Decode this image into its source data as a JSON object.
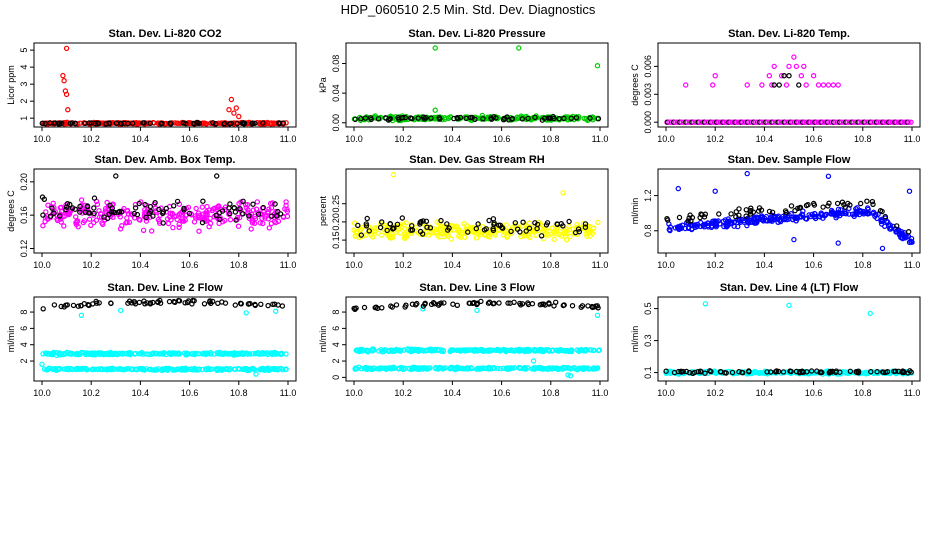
{
  "figure_title": "HDP_060510  2.5 Min. Std. Dev. Diagnostics",
  "colors": {
    "red": "#ff0000",
    "green": "#00cc00",
    "magenta": "#ff00ff",
    "yellow": "#ffff00",
    "blue": "#0000ff",
    "cyan": "#00ffff",
    "black": "#000000"
  },
  "chart_data": [
    {
      "type": "scatter",
      "title": "Stan. Dev. Li-820 CO2",
      "ylabel": "Licor ppm",
      "xlabel": "",
      "xlim": [
        10.0,
        11.0
      ],
      "ylim": [
        0.6,
        5.3
      ],
      "xticks": [
        "10.0",
        "10.2",
        "10.4",
        "10.6",
        "10.8",
        "11.0"
      ],
      "yticks": [
        {
          "v": 1,
          "label": "1"
        },
        {
          "v": 2,
          "label": "2"
        },
        {
          "v": 3,
          "label": "3"
        },
        {
          "v": 4,
          "label": "4"
        },
        {
          "v": 5,
          "label": "5"
        }
      ],
      "series": [
        {
          "name": "primary",
          "color": "#ff0000",
          "gen": {
            "seed": 11,
            "n": 230,
            "base": 0.7,
            "amp": 0.07
          },
          "points": [
            [
              10.1,
              5.1
            ],
            [
              10.085,
              3.5
            ],
            [
              10.09,
              3.2
            ],
            [
              10.095,
              2.6
            ],
            [
              10.1,
              2.4
            ],
            [
              10.105,
              1.5
            ],
            [
              10.77,
              2.1
            ],
            [
              10.76,
              1.5
            ],
            [
              10.78,
              1.3
            ],
            [
              10.79,
              1.6
            ],
            [
              10.8,
              1.1
            ]
          ]
        },
        {
          "name": "secondary",
          "color": "#000000",
          "gen": {
            "seed": 12,
            "n": 70,
            "base": 0.7,
            "amp": 0.06
          },
          "points": []
        }
      ]
    },
    {
      "type": "scatter",
      "title": "Stan. Dev. Li-820 Pressure",
      "ylabel": "kPa",
      "xlabel": "",
      "xlim": [
        10.0,
        11.0
      ],
      "ylim": [
        -0.003,
        0.105
      ],
      "xticks": [
        "10.0",
        "10.2",
        "10.4",
        "10.6",
        "10.8",
        "11.0"
      ],
      "yticks": [
        {
          "v": 0,
          "label": "0.00"
        },
        {
          "v": 0.04,
          "label": "0.04"
        },
        {
          "v": 0.08,
          "label": "0.08"
        }
      ],
      "series": [
        {
          "name": "primary",
          "color": "#00cc00",
          "gen": {
            "seed": 21,
            "n": 230,
            "base": 0.006,
            "amp": 0.004
          },
          "points": [
            [
              10.33,
              0.101
            ],
            [
              10.67,
              0.101
            ],
            [
              10.99,
              0.077
            ],
            [
              10.33,
              0.017
            ]
          ]
        },
        {
          "name": "secondary",
          "color": "#000000",
          "gen": {
            "seed": 22,
            "n": 60,
            "base": 0.006,
            "amp": 0.003
          },
          "points": []
        }
      ]
    },
    {
      "type": "scatter",
      "title": "Stan. Dev. Li-820 Temp.",
      "ylabel": "degrees C",
      "xlabel": "",
      "xlim": [
        10.0,
        11.0
      ],
      "ylim": [
        -0.0003,
        0.0083
      ],
      "xticks": [
        "10.0",
        "10.2",
        "10.4",
        "10.6",
        "10.8",
        "11.0"
      ],
      "yticks": [
        {
          "v": 0,
          "label": "0.000"
        },
        {
          "v": 0.003,
          "label": "0.003"
        },
        {
          "v": 0.006,
          "label": "0.006"
        }
      ],
      "series": [
        {
          "name": "primary",
          "color": "#ff00ff",
          "gen": {
            "seed": 31,
            "n": 0,
            "base": 0,
            "amp": 0
          },
          "points": [
            [
              10.08,
              0.004
            ],
            [
              10.19,
              0.004
            ],
            [
              10.2,
              0.005
            ],
            [
              10.33,
              0.004
            ],
            [
              10.39,
              0.004
            ],
            [
              10.42,
              0.005
            ],
            [
              10.43,
              0.004
            ],
            [
              10.44,
              0.006
            ],
            [
              10.47,
              0.005
            ],
            [
              10.49,
              0.004
            ],
            [
              10.5,
              0.006
            ],
            [
              10.52,
              0.007
            ],
            [
              10.53,
              0.006
            ],
            [
              10.55,
              0.005
            ],
            [
              10.56,
              0.006
            ],
            [
              10.57,
              0.004
            ],
            [
              10.6,
              0.005
            ],
            [
              10.62,
              0.004
            ],
            [
              10.64,
              0.004
            ],
            [
              10.66,
              0.004
            ],
            [
              10.68,
              0.004
            ],
            [
              10.7,
              0.004
            ]
          ]
        },
        {
          "name": "secondary",
          "color": "#000000",
          "gen": {
            "seed": 32,
            "n": 0,
            "base": 0,
            "amp": 0
          },
          "points": [
            [
              10.44,
              0.004
            ],
            [
              10.46,
              0.004
            ],
            [
              10.48,
              0.005
            ],
            [
              10.5,
              0.005
            ],
            [
              10.54,
              0.004
            ]
          ]
        }
      ],
      "baseline": {
        "value": 0,
        "count": 120,
        "color": "#ff00ff"
      }
    },
    {
      "type": "scatter",
      "title": "Stan. Dev. Amb. Box Temp.",
      "ylabel": "degrees C",
      "xlabel": "",
      "xlim": [
        10.0,
        11.0
      ],
      "ylim": [
        0.117,
        0.213
      ],
      "xticks": [
        "10.0",
        "10.2",
        "10.4",
        "10.6",
        "10.8",
        "11.0"
      ],
      "yticks": [
        {
          "v": 0.12,
          "label": "0.12"
        },
        {
          "v": 0.16,
          "label": "0.16"
        },
        {
          "v": 0.2,
          "label": "0.20"
        }
      ],
      "series": [
        {
          "name": "primary",
          "color": "#ff00ff",
          "gen": {
            "seed": 41,
            "n": 280,
            "base": 0.16,
            "amp": 0.022
          },
          "points": []
        },
        {
          "name": "secondary",
          "color": "#000000",
          "gen": {
            "seed": 42,
            "n": 80,
            "base": 0.165,
            "amp": 0.022
          },
          "points": [
            [
              10.3,
              0.207
            ],
            [
              10.71,
              0.207
            ]
          ]
        }
      ]
    },
    {
      "type": "scatter",
      "title": "Stan. Dev. Gas Stream RH",
      "ylabel": "percent",
      "xlabel": "",
      "xlim": [
        10.0,
        11.0
      ],
      "ylim": [
        0.12,
        0.34
      ],
      "xticks": [
        "10.0",
        "10.2",
        "10.4",
        "10.6",
        "10.8",
        "11.0"
      ],
      "yticks": [
        {
          "v": 0.15,
          "label": "0.15"
        },
        {
          "v": 0.2,
          "label": "0.20"
        },
        {
          "v": 0.25,
          "label": "0.25"
        }
      ],
      "series": [
        {
          "name": "primary",
          "color": "#ffff00",
          "gen": {
            "seed": 51,
            "n": 280,
            "base": 0.175,
            "amp": 0.03
          },
          "points": [
            [
              10.16,
              0.33
            ],
            [
              10.85,
              0.28
            ]
          ]
        },
        {
          "name": "secondary",
          "color": "#000000",
          "gen": {
            "seed": 52,
            "n": 70,
            "base": 0.185,
            "amp": 0.035
          },
          "points": []
        }
      ]
    },
    {
      "type": "scatter",
      "title": "Stan. Dev. Sample Flow",
      "ylabel": "ml/min",
      "xlabel": "",
      "xlim": [
        10.0,
        11.0
      ],
      "ylim": [
        0.57,
        1.48
      ],
      "xticks": [
        "10.0",
        "10.2",
        "10.4",
        "10.6",
        "10.8",
        "11.0"
      ],
      "yticks": [
        {
          "v": 0.8,
          "label": "0.8"
        },
        {
          "v": 1.2,
          "label": "1.2"
        }
      ],
      "series": [
        {
          "name": "primary",
          "color": "#0000ff",
          "gen": {
            "seed": 61,
            "n": 280,
            "base": 0.95,
            "amp": 0.07,
            "curve": "flow"
          },
          "points": [
            [
              10.33,
              1.45
            ],
            [
              10.66,
              1.42
            ],
            [
              10.05,
              1.28
            ],
            [
              10.2,
              1.25
            ],
            [
              10.99,
              1.25
            ],
            [
              10.52,
              0.7
            ],
            [
              10.7,
              0.66
            ],
            [
              10.88,
              0.6
            ]
          ]
        },
        {
          "name": "secondary",
          "color": "#000000",
          "gen": {
            "seed": 62,
            "n": 60,
            "base": 1.05,
            "amp": 0.06,
            "curve": "flow"
          },
          "points": []
        }
      ]
    },
    {
      "type": "scatter",
      "title": "Stan. Dev. Line 2 Flow",
      "ylabel": "ml/min",
      "xlabel": "",
      "xlim": [
        10.0,
        11.0
      ],
      "ylim": [
        -0.2,
        9.6
      ],
      "xticks": [
        "10.0",
        "10.2",
        "10.4",
        "10.6",
        "10.8",
        "11.0"
      ],
      "yticks": [
        {
          "v": 2,
          "label": "2"
        },
        {
          "v": 4,
          "label": "4"
        },
        {
          "v": 6,
          "label": "6"
        },
        {
          "v": 8,
          "label": "8"
        }
      ],
      "series": [
        {
          "name": "band-high",
          "color": "#00ffff",
          "gen": {
            "seed": 71,
            "n": 240,
            "base": 2.9,
            "amp": 0.22
          },
          "points": [
            [
              10.0,
              1.6
            ]
          ]
        },
        {
          "name": "band-low",
          "color": "#00ffff",
          "gen": {
            "seed": 72,
            "n": 240,
            "base": 1.0,
            "amp": 0.18
          },
          "points": [
            [
              10.87,
              0.4
            ],
            [
              10.16,
              7.6
            ],
            [
              10.32,
              8.2
            ],
            [
              10.83,
              7.9
            ],
            [
              10.95,
              8.1
            ]
          ]
        },
        {
          "name": "secondary",
          "color": "#000000",
          "gen": {
            "seed": 73,
            "n": 70,
            "base": 8.6,
            "amp": 0.35,
            "curve": "arch"
          },
          "points": [
            [
              10.22,
              9.3
            ]
          ]
        }
      ]
    },
    {
      "type": "scatter",
      "title": "Stan. Dev. Line 3 Flow",
      "ylabel": "ml/min",
      "xlabel": "",
      "xlim": [
        10.0,
        11.0
      ],
      "ylim": [
        -0.2,
        9.6
      ],
      "xticks": [
        "10.0",
        "10.2",
        "10.4",
        "10.6",
        "10.8",
        "11.0"
      ],
      "yticks": [
        {
          "v": 0,
          "label": "0"
        },
        {
          "v": 2,
          "label": "2"
        },
        {
          "v": 4,
          "label": "4"
        },
        {
          "v": 6,
          "label": "6"
        },
        {
          "v": 8,
          "label": "8"
        }
      ],
      "series": [
        {
          "name": "band-high",
          "color": "#00ffff",
          "gen": {
            "seed": 81,
            "n": 240,
            "base": 3.3,
            "amp": 0.22
          },
          "points": [
            [
              10.73,
              2.0
            ]
          ]
        },
        {
          "name": "band-low",
          "color": "#00ffff",
          "gen": {
            "seed": 82,
            "n": 240,
            "base": 1.1,
            "amp": 0.18
          },
          "points": [
            [
              10.87,
              0.3
            ],
            [
              10.88,
              0.2
            ],
            [
              10.5,
              8.2
            ],
            [
              10.28,
              8.4
            ],
            [
              10.99,
              7.6
            ]
          ]
        },
        {
          "name": "secondary",
          "color": "#000000",
          "gen": {
            "seed": 83,
            "n": 70,
            "base": 8.5,
            "amp": 0.3,
            "curve": "arch"
          },
          "points": [
            [
              10.82,
              9.2
            ]
          ]
        }
      ]
    },
    {
      "type": "scatter",
      "title": "Stan. Dev. Line 4 (LT) Flow",
      "ylabel": "ml/min",
      "xlabel": "",
      "xlim": [
        10.0,
        11.0
      ],
      "ylim": [
        0.06,
        0.56
      ],
      "xticks": [
        "10.0",
        "10.2",
        "10.4",
        "10.6",
        "10.8",
        "11.0"
      ],
      "yticks": [
        {
          "v": 0.1,
          "label": "0.1"
        },
        {
          "v": 0.3,
          "label": "0.3"
        },
        {
          "v": 0.5,
          "label": "0.5"
        }
      ],
      "series": [
        {
          "name": "primary",
          "color": "#00ffff",
          "gen": {
            "seed": 91,
            "n": 240,
            "base": 0.1,
            "amp": 0.012
          },
          "points": [
            [
              10.16,
              0.53
            ],
            [
              10.5,
              0.52
            ],
            [
              10.83,
              0.47
            ]
          ]
        },
        {
          "name": "secondary",
          "color": "#000000",
          "gen": {
            "seed": 92,
            "n": 80,
            "base": 0.105,
            "amp": 0.01
          },
          "points": []
        }
      ]
    }
  ]
}
